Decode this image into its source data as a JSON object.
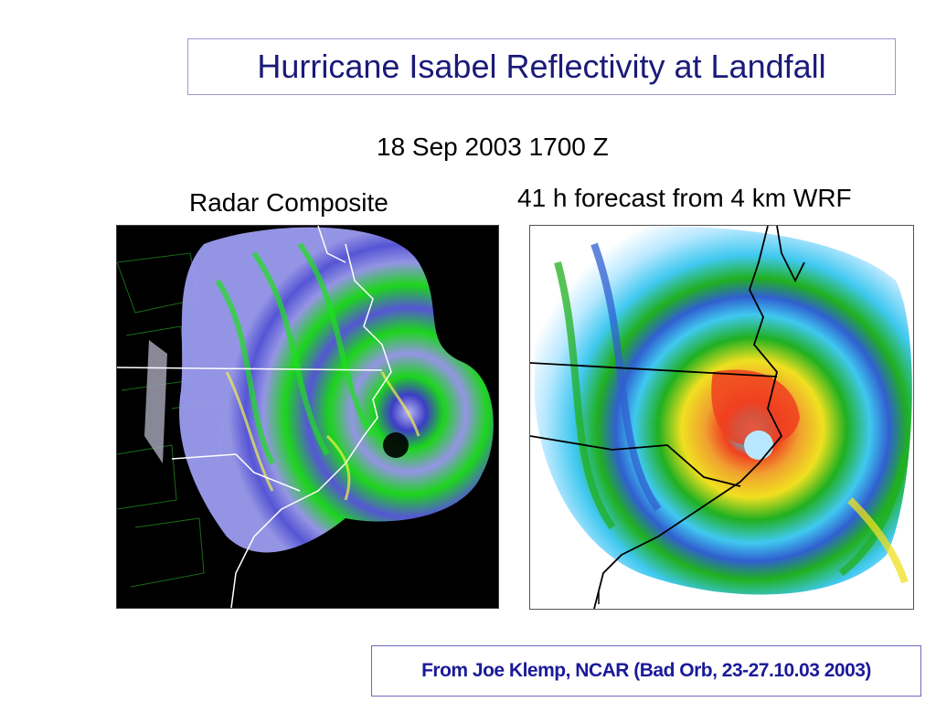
{
  "slide": {
    "title": "Hurricane Isabel Reflectivity at Landfall",
    "timestamp": "18 Sep 2003 1700 Z",
    "left_caption": "Radar Composite",
    "right_caption": "41 h forecast from 4 km WRF",
    "credit": "From Joe Klemp, NCAR (Bad Orb, 23-27.10.03 2003)"
  },
  "colors": {
    "title": "#1a1a7a",
    "credit": "#1a1a9a",
    "radar_background": "#000000",
    "radar_lavender": "#9c9cf0",
    "radar_blue": "#5a5ae0",
    "radar_green": "#1ee01e",
    "radar_yellow": "#f0f050",
    "radar_gray": "#a0a0b0",
    "wrf_lightblue": "#b8e8ff",
    "wrf_cyan": "#40c8f0",
    "wrf_blue": "#3060d0",
    "wrf_green": "#20b020",
    "wrf_yellow": "#f0e020",
    "wrf_orange": "#f0a030",
    "wrf_red": "#f04020"
  }
}
